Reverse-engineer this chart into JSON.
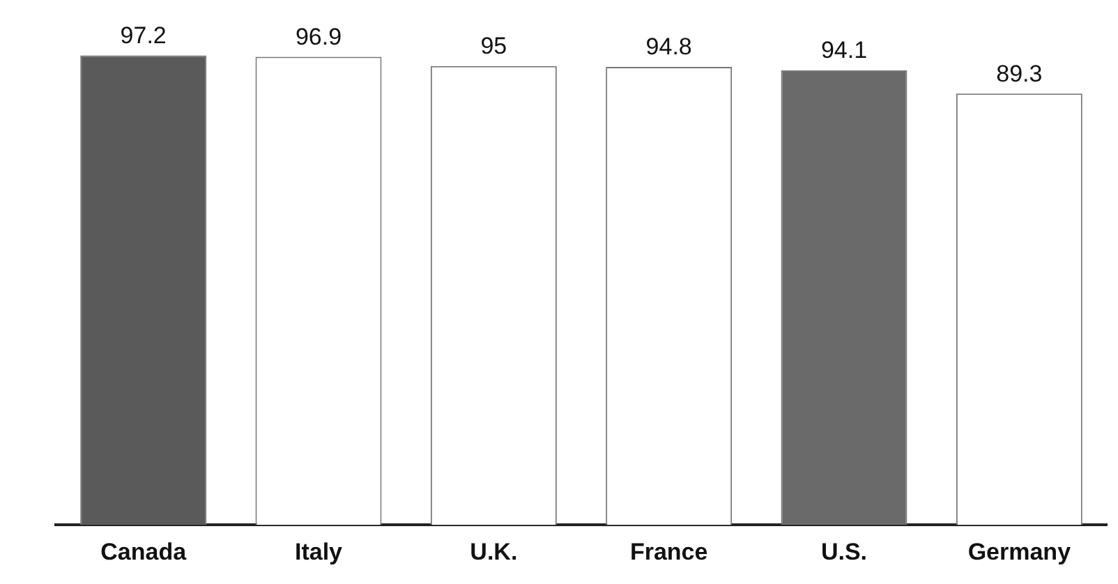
{
  "chart_data": {
    "type": "bar",
    "categories": [
      "Canada",
      "Italy",
      "U.K.",
      "France",
      "U.S.",
      "Germany"
    ],
    "values": [
      97.2,
      96.9,
      95,
      94.8,
      94.1,
      89.3
    ],
    "colors": [
      "#5a5a5a",
      "#ffffff",
      "#ffffff",
      "#ffffff",
      "#6a6a6a",
      "#ffffff"
    ],
    "tick_labels": "x",
    "data_labels": true,
    "grid": false,
    "legend": false
  }
}
